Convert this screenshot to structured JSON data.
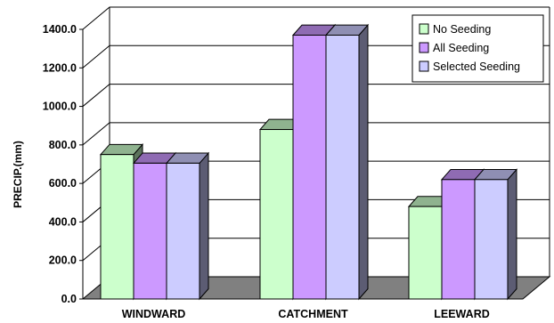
{
  "chart_data": {
    "type": "bar",
    "ylabel": "PRECIP.(mm)",
    "ylim": [
      0,
      1400
    ],
    "yticks": [
      "0.0",
      "200.0",
      "400.0",
      "600.0",
      "800.0",
      "1000.0",
      "1200.0",
      "1400.0"
    ],
    "categories": [
      "WINDWARD",
      "CATCHMENT",
      "LEEWARD"
    ],
    "series": [
      {
        "name": "No Seeding",
        "values": [
          750,
          880,
          480
        ],
        "color": "#ccffcc"
      },
      {
        "name": "All Seeding",
        "values": [
          705,
          1370,
          620
        ],
        "color": "#cc99ff"
      },
      {
        "name": "Selected Seeding",
        "values": [
          705,
          1370,
          620
        ],
        "color": "#ccccff"
      }
    ],
    "grid": true,
    "legend_position": "top-right",
    "style": "3d-bar"
  }
}
